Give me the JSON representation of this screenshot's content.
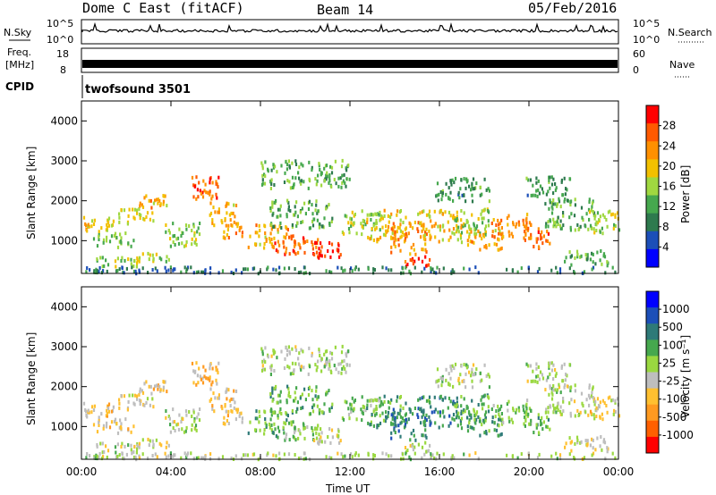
{
  "header": {
    "radar": "Dome C East (fitACF)",
    "beam": "Beam 14",
    "date": "05/Feb/2016"
  },
  "top_panels": {
    "nsky_label": "N.Sky",
    "nsky_tick_top": "10^5",
    "nsky_tick_bottom": "10^0",
    "nsearch_label": "N.Search",
    "nsearch_tick_top": "10^5",
    "nsearch_tick_bottom": "10^0",
    "freq_label_line1": "Freq.",
    "freq_label_line2": "[MHz]",
    "freq_tick_top": "18",
    "freq_tick_bottom": "8",
    "nave_label": "Nave",
    "nave_tick_top": "60",
    "nave_tick_bottom": "0",
    "cpid_label": "CPID",
    "cpid_value": "twofsound 3501"
  },
  "colors": {
    "power": [
      "#0000ff",
      "#1c4fb8",
      "#2e7a4e",
      "#46a84e",
      "#a0d840",
      "#f2c000",
      "#ff9000",
      "#ff5a00",
      "#ff0000"
    ],
    "velocity": [
      "#ff0000",
      "#ff6000",
      "#ff9a20",
      "#ffc030",
      "#bebebe",
      "#9ad840",
      "#46a84e",
      "#2e7a78",
      "#1c4fb8",
      "#0000ff"
    ]
  },
  "chart_data": [
    {
      "type": "heatmap",
      "name": "power",
      "ylabel": "Slant Range [km]",
      "xlabel": "",
      "colorbar_label": "Power [dB]",
      "colorbar_ticks": [
        "4",
        "8",
        "12",
        "16",
        "20",
        "24",
        "28"
      ],
      "x_ticks": [
        "00:00",
        "04:00",
        "08:00",
        "12:00",
        "16:00",
        "20:00",
        "00:00"
      ],
      "y_ticks": [
        "1000",
        "2000",
        "3000",
        "4000"
      ],
      "ylim": [
        180,
        4500
      ],
      "xlim": [
        0,
        24
      ],
      "colorbar_range": [
        0,
        30
      ],
      "blobs": [
        {
          "t": 0.6,
          "r": 1450,
          "dt": 0.8,
          "dr": 220,
          "v": 18
        },
        {
          "t": 1.4,
          "r": 1050,
          "dt": 0.9,
          "dr": 180,
          "v": 14
        },
        {
          "t": 2.4,
          "r": 1650,
          "dt": 0.8,
          "dr": 200,
          "v": 16
        },
        {
          "t": 3.2,
          "r": 2050,
          "dt": 0.7,
          "dr": 200,
          "v": 20
        },
        {
          "t": 1.6,
          "r": 500,
          "dt": 1.0,
          "dr": 120,
          "v": 14
        },
        {
          "t": 3.2,
          "r": 600,
          "dt": 0.9,
          "dr": 130,
          "v": 16
        },
        {
          "t": 4.5,
          "r": 1200,
          "dt": 0.8,
          "dr": 300,
          "v": 14
        },
        {
          "t": 5.5,
          "r": 2300,
          "dt": 0.6,
          "dr": 350,
          "v": 24
        },
        {
          "t": 6.4,
          "r": 1700,
          "dt": 0.7,
          "dr": 300,
          "v": 20
        },
        {
          "t": 6.8,
          "r": 1250,
          "dt": 0.5,
          "dr": 150,
          "v": 22
        },
        {
          "t": 8.3,
          "r": 1150,
          "dt": 0.9,
          "dr": 300,
          "v": 20
        },
        {
          "t": 9.6,
          "r": 950,
          "dt": 1.0,
          "dr": 250,
          "v": 24
        },
        {
          "t": 10.8,
          "r": 800,
          "dt": 0.8,
          "dr": 200,
          "v": 28
        },
        {
          "t": 9.8,
          "r": 1700,
          "dt": 1.4,
          "dr": 350,
          "v": 12
        },
        {
          "t": 10.0,
          "r": 2700,
          "dt": 2.0,
          "dr": 350,
          "v": 12
        },
        {
          "t": 12.5,
          "r": 1500,
          "dt": 0.9,
          "dr": 300,
          "v": 14
        },
        {
          "t": 13.6,
          "r": 1400,
          "dt": 0.9,
          "dr": 400,
          "v": 18
        },
        {
          "t": 14.6,
          "r": 1100,
          "dt": 0.8,
          "dr": 400,
          "v": 22
        },
        {
          "t": 15.0,
          "r": 550,
          "dt": 0.6,
          "dr": 150,
          "v": 26
        },
        {
          "t": 16.0,
          "r": 1400,
          "dt": 1.0,
          "dr": 400,
          "v": 18
        },
        {
          "t": 17.3,
          "r": 1500,
          "dt": 0.9,
          "dr": 350,
          "v": 14
        },
        {
          "t": 18.0,
          "r": 1050,
          "dt": 0.8,
          "dr": 250,
          "v": 20
        },
        {
          "t": 19.2,
          "r": 1400,
          "dt": 0.9,
          "dr": 300,
          "v": 22
        },
        {
          "t": 20.3,
          "r": 1100,
          "dt": 0.6,
          "dr": 250,
          "v": 24
        },
        {
          "t": 21.8,
          "r": 1700,
          "dt": 1.2,
          "dr": 400,
          "v": 12
        },
        {
          "t": 23.3,
          "r": 1500,
          "dt": 0.7,
          "dr": 300,
          "v": 16
        },
        {
          "t": 17.0,
          "r": 2300,
          "dt": 1.2,
          "dr": 300,
          "v": 10
        },
        {
          "t": 20.8,
          "r": 2400,
          "dt": 1.0,
          "dr": 250,
          "v": 10
        },
        {
          "t": 22.5,
          "r": 600,
          "dt": 1.0,
          "dr": 200,
          "v": 12
        },
        {
          "t": 12.0,
          "r": 300,
          "dt": 12.0,
          "dr": 80,
          "v": 8
        }
      ]
    },
    {
      "type": "heatmap",
      "name": "velocity",
      "ylabel": "Slant Range [km]",
      "xlabel": "Time UT",
      "colorbar_label": "Velocity [m s⁻¹]",
      "colorbar_ticks": [
        "-1000",
        "-500",
        "-100",
        "-25",
        "25",
        "100",
        "500",
        "1000"
      ],
      "x_ticks": [
        "00:00",
        "04:00",
        "08:00",
        "12:00",
        "16:00",
        "20:00",
        "00:00"
      ],
      "y_ticks": [
        "1000",
        "2000",
        "3000",
        "4000"
      ],
      "ylim": [
        180,
        4500
      ],
      "xlim": [
        0,
        24
      ],
      "colorbar_range": [
        -1200,
        1200
      ],
      "blobs": [
        {
          "t": 0.6,
          "r": 1450,
          "dt": 0.8,
          "dr": 220,
          "v": -300
        },
        {
          "t": 1.4,
          "r": 1050,
          "dt": 0.9,
          "dr": 180,
          "v": -200
        },
        {
          "t": 2.4,
          "r": 1650,
          "dt": 0.8,
          "dr": 200,
          "v": -250
        },
        {
          "t": 3.2,
          "r": 2050,
          "dt": 0.7,
          "dr": 200,
          "v": -300
        },
        {
          "t": 1.6,
          "r": 500,
          "dt": 1.0,
          "dr": 120,
          "v": 0
        },
        {
          "t": 3.2,
          "r": 600,
          "dt": 0.9,
          "dr": 130,
          "v": -150
        },
        {
          "t": 4.5,
          "r": 1200,
          "dt": 0.8,
          "dr": 300,
          "v": 0
        },
        {
          "t": 5.5,
          "r": 2300,
          "dt": 0.6,
          "dr": 350,
          "v": -400
        },
        {
          "t": 6.4,
          "r": 1700,
          "dt": 0.7,
          "dr": 300,
          "v": -300
        },
        {
          "t": 6.8,
          "r": 1250,
          "dt": 0.5,
          "dr": 150,
          "v": -200
        },
        {
          "t": 8.3,
          "r": 1150,
          "dt": 0.9,
          "dr": 300,
          "v": 300
        },
        {
          "t": 9.6,
          "r": 950,
          "dt": 1.0,
          "dr": 250,
          "v": 200
        },
        {
          "t": 10.8,
          "r": 800,
          "dt": 0.8,
          "dr": 200,
          "v": -100
        },
        {
          "t": 9.8,
          "r": 1700,
          "dt": 1.4,
          "dr": 350,
          "v": 300
        },
        {
          "t": 10.0,
          "r": 2700,
          "dt": 2.0,
          "dr": 350,
          "v": 0
        },
        {
          "t": 12.5,
          "r": 1500,
          "dt": 0.9,
          "dr": 300,
          "v": 200
        },
        {
          "t": 13.6,
          "r": 1400,
          "dt": 0.9,
          "dr": 400,
          "v": 400
        },
        {
          "t": 14.6,
          "r": 1100,
          "dt": 0.8,
          "dr": 400,
          "v": 600
        },
        {
          "t": 15.0,
          "r": 550,
          "dt": 0.6,
          "dr": 150,
          "v": -100
        },
        {
          "t": 16.0,
          "r": 1400,
          "dt": 1.0,
          "dr": 400,
          "v": 500
        },
        {
          "t": 17.3,
          "r": 1500,
          "dt": 0.9,
          "dr": 350,
          "v": 300
        },
        {
          "t": 18.0,
          "r": 1050,
          "dt": 0.8,
          "dr": 250,
          "v": 400
        },
        {
          "t": 19.2,
          "r": 1400,
          "dt": 0.9,
          "dr": 300,
          "v": 200
        },
        {
          "t": 20.3,
          "r": 1100,
          "dt": 0.6,
          "dr": 250,
          "v": 300
        },
        {
          "t": 21.8,
          "r": 1700,
          "dt": 1.2,
          "dr": 400,
          "v": 0
        },
        {
          "t": 23.3,
          "r": 1500,
          "dt": 0.7,
          "dr": 300,
          "v": -200
        },
        {
          "t": 17.0,
          "r": 2300,
          "dt": 1.2,
          "dr": 300,
          "v": 0
        },
        {
          "t": 20.8,
          "r": 2400,
          "dt": 1.0,
          "dr": 250,
          "v": 0
        },
        {
          "t": 22.5,
          "r": 600,
          "dt": 1.0,
          "dr": 200,
          "v": -150
        },
        {
          "t": 12.0,
          "r": 300,
          "dt": 12.0,
          "dr": 80,
          "v": 0
        }
      ]
    }
  ]
}
